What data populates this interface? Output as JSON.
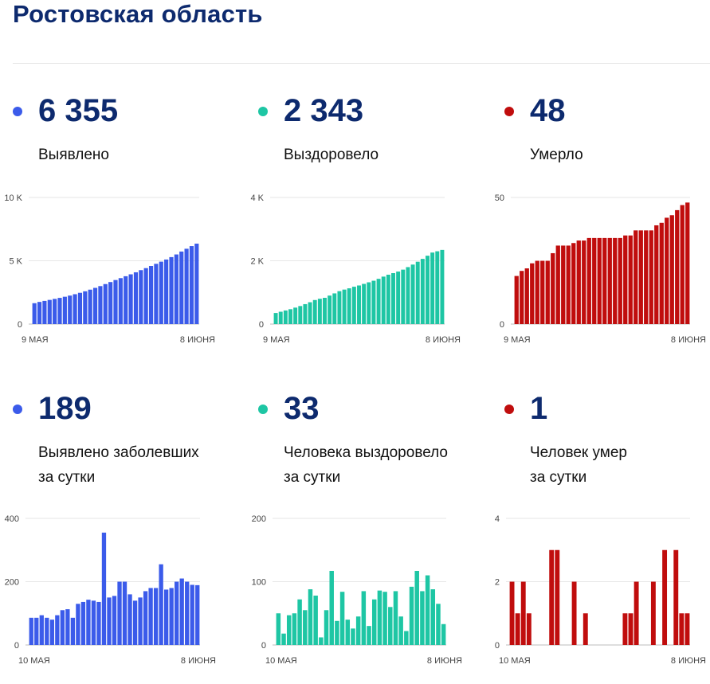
{
  "page": {
    "title": "Ростовская область"
  },
  "colors": {
    "blue": "#3b5bea",
    "teal": "#1ec6a4",
    "red": "#c00d0d",
    "heading": "#0d2a6e"
  },
  "stats": [
    {
      "id": "confirmed",
      "value": "6 355",
      "label": "Выявлено",
      "color": "#3b5bea"
    },
    {
      "id": "recovered",
      "value": "2 343",
      "label": "Выздоровело",
      "color": "#1ec6a4"
    },
    {
      "id": "deaths",
      "value": "48",
      "label": "Умерло",
      "color": "#c00d0d"
    },
    {
      "id": "daily-confirmed",
      "value": "189",
      "label": "Выявлено заболевших\nза сутки",
      "color": "#3b5bea"
    },
    {
      "id": "daily-recovered",
      "value": "33",
      "label": "Человека выздоровело\nза сутки",
      "color": "#1ec6a4"
    },
    {
      "id": "daily-deaths",
      "value": "1",
      "label": "Человек умер\nза сутки",
      "color": "#c00d0d"
    }
  ],
  "chart_data": [
    {
      "type": "bar",
      "title": "Выявлено",
      "color": "#3b5bea",
      "x_start_label": "9 МАЯ",
      "x_end_label": "8 ИЮНЯ",
      "ylim": [
        0,
        10000
      ],
      "yticks": [
        0,
        5000,
        10000
      ],
      "ytick_labels": [
        "0",
        "5 K",
        "10 K"
      ],
      "values": [
        1650,
        1750,
        1830,
        1910,
        1990,
        2070,
        2160,
        2250,
        2360,
        2470,
        2590,
        2720,
        2860,
        3000,
        3160,
        3320,
        3480,
        3630,
        3780,
        3930,
        4090,
        4260,
        4420,
        4590,
        4760,
        4930,
        5100,
        5290,
        5500,
        5730,
        5950,
        6160,
        6355
      ]
    },
    {
      "type": "bar",
      "title": "Выздоровело",
      "color": "#1ec6a4",
      "x_start_label": "9 МАЯ",
      "x_end_label": "8 ИЮНЯ",
      "ylim": [
        0,
        4000
      ],
      "yticks": [
        0,
        2000,
        4000
      ],
      "ytick_labels": [
        "0",
        "2 K",
        "4 K"
      ],
      "values": [
        350,
        390,
        430,
        470,
        520,
        570,
        630,
        690,
        760,
        800,
        830,
        900,
        970,
        1040,
        1090,
        1130,
        1180,
        1220,
        1270,
        1320,
        1370,
        1430,
        1500,
        1560,
        1610,
        1660,
        1720,
        1800,
        1880,
        1970,
        2060,
        2160,
        2260,
        2300,
        2343
      ]
    },
    {
      "type": "bar",
      "title": "Умерло",
      "color": "#c00d0d",
      "x_start_label": "9 МАЯ",
      "x_end_label": "8 ИЮНЯ",
      "ylim": [
        0,
        50
      ],
      "yticks": [
        0,
        50
      ],
      "ytick_labels": [
        "0",
        "50"
      ],
      "values": [
        19,
        21,
        22,
        24,
        25,
        25,
        25,
        28,
        31,
        31,
        31,
        32,
        33,
        33,
        34,
        34,
        34,
        34,
        34,
        34,
        34,
        35,
        35,
        37,
        37,
        37,
        37,
        39,
        40,
        42,
        43,
        45,
        47,
        48
      ]
    },
    {
      "type": "bar",
      "title": "Выявлено заболевших за сутки",
      "color": "#3b5bea",
      "x_start_label": "10 МАЯ",
      "x_end_label": "8 ИЮНЯ",
      "ylim": [
        0,
        400
      ],
      "yticks": [
        0,
        200,
        400
      ],
      "ytick_labels": [
        "0",
        "200",
        "400"
      ],
      "values": [
        86,
        86,
        94,
        86,
        80,
        94,
        110,
        113,
        86,
        130,
        136,
        143,
        140,
        136,
        355,
        150,
        155,
        200,
        200,
        160,
        140,
        150,
        170,
        180,
        180,
        255,
        175,
        180,
        200,
        210,
        200,
        190,
        189
      ]
    },
    {
      "type": "bar",
      "title": "Человека выздоровело за сутки",
      "color": "#1ec6a4",
      "x_start_label": "10 МАЯ",
      "x_end_label": "8 ИЮНЯ",
      "ylim": [
        0,
        200
      ],
      "yticks": [
        0,
        100,
        200
      ],
      "ytick_labels": [
        "0",
        "100",
        "200"
      ],
      "values": [
        50,
        18,
        47,
        50,
        72,
        55,
        88,
        78,
        12,
        55,
        117,
        38,
        84,
        40,
        26,
        45,
        85,
        30,
        72,
        86,
        84,
        60,
        85,
        45,
        22,
        92,
        117,
        85,
        110,
        88,
        65,
        33
      ]
    },
    {
      "type": "bar",
      "title": "Человек умер за сутки",
      "color": "#c00d0d",
      "x_start_label": "10 МАЯ",
      "x_end_label": "8 ИЮНЯ",
      "ylim": [
        0,
        4
      ],
      "yticks": [
        0,
        2,
        4
      ],
      "ytick_labels": [
        "0",
        "2",
        "4"
      ],
      "values": [
        2,
        1,
        2,
        1,
        0,
        0,
        0,
        3,
        3,
        0,
        0,
        2,
        0,
        1,
        0,
        0,
        0,
        0,
        0,
        0,
        1,
        1,
        2,
        0,
        0,
        2,
        0,
        3,
        0,
        3,
        1,
        1
      ]
    }
  ]
}
